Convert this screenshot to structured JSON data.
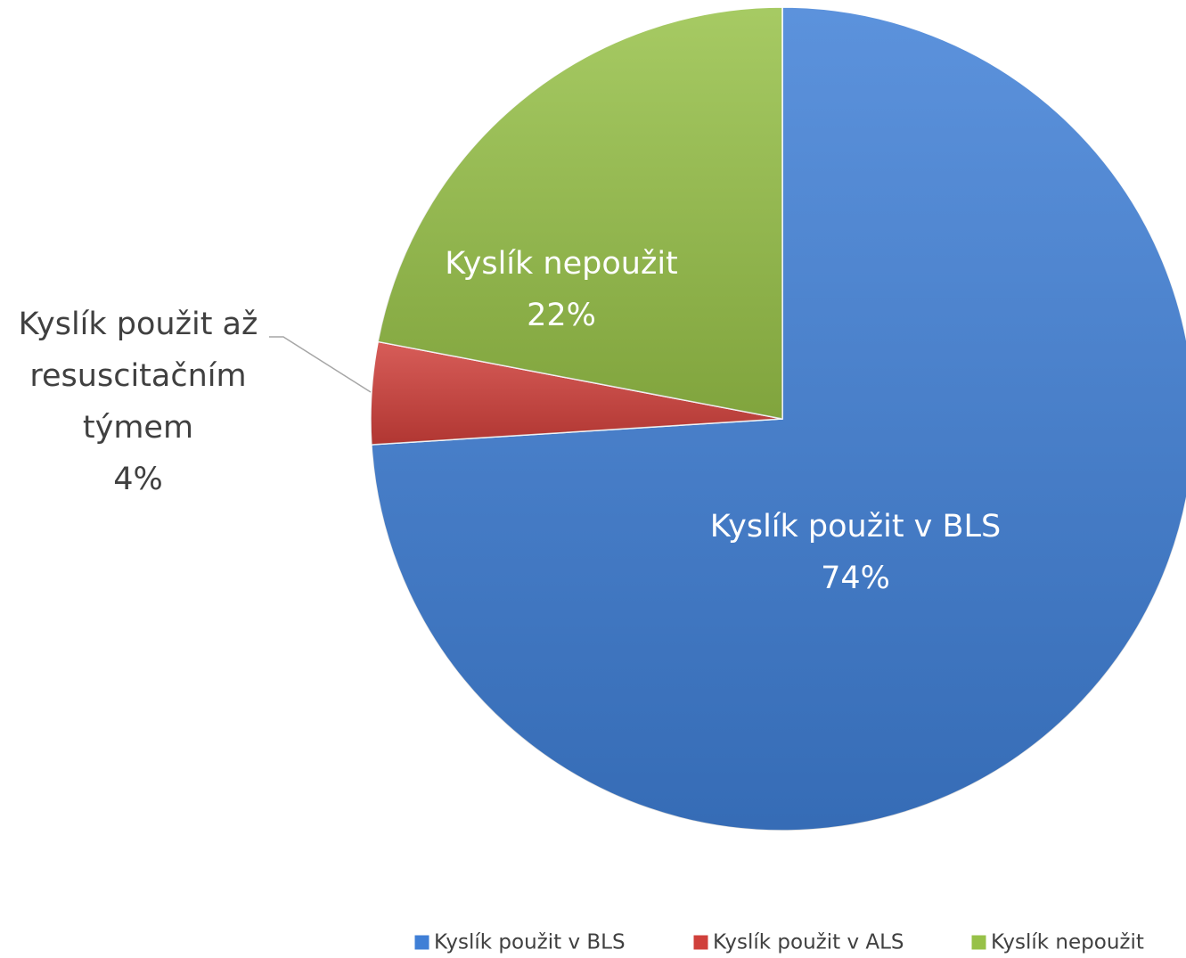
{
  "chart_data": {
    "type": "pie",
    "categories": [
      "Kyslík použit v BLS",
      "Kyslík použit v ALS",
      "Kyslík nepoužit"
    ],
    "values": [
      74,
      4,
      22
    ],
    "value_labels": [
      "74%",
      "4%",
      "22%"
    ],
    "slice_labels": [
      [
        "Kyslík použit v BLS"
      ],
      [
        "Kyslík použit až",
        "resuscitačním",
        "týmem"
      ],
      [
        "Kyslík nepoužit"
      ]
    ],
    "colors": [
      "#3f7fd6",
      "#d0403b",
      "#97c148"
    ],
    "legend": "bottom"
  }
}
